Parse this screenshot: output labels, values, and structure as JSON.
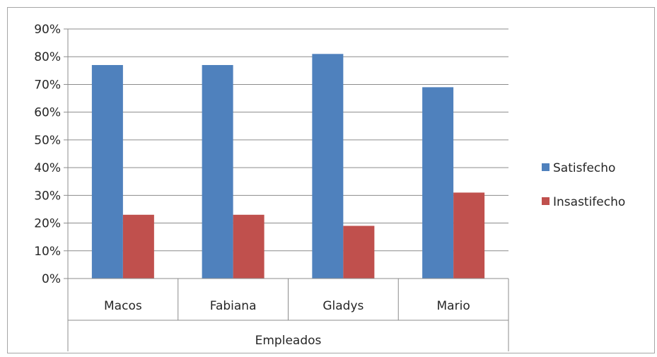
{
  "chart_data": {
    "type": "bar",
    "categories": [
      "Macos",
      "Fabiana",
      "Gladys",
      "Mario"
    ],
    "group_label": "Empleados",
    "series": [
      {
        "name": "Satisfecho",
        "values": [
          77,
          77,
          81,
          69
        ],
        "color": "#4f81bd"
      },
      {
        "name": "Insastifecho",
        "values": [
          23,
          23,
          19,
          31
        ],
        "color": "#c0504d"
      }
    ],
    "ylim": [
      0,
      90
    ],
    "y_ticks": [
      "0%",
      "10%",
      "20%",
      "30%",
      "40%",
      "50%",
      "60%",
      "70%",
      "80%",
      "90%"
    ],
    "grid": true,
    "legend_position": "right"
  }
}
